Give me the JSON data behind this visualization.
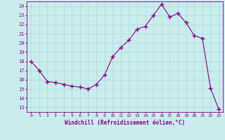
{
  "x": [
    0,
    1,
    2,
    3,
    4,
    5,
    6,
    7,
    8,
    9,
    10,
    11,
    12,
    13,
    14,
    15,
    16,
    17,
    18,
    19,
    20,
    21,
    22,
    23
  ],
  "y": [
    18,
    17,
    15.8,
    15.7,
    15.5,
    15.3,
    15.2,
    15.0,
    15.5,
    16.5,
    18.5,
    19.5,
    20.3,
    21.5,
    21.8,
    23.0,
    24.2,
    22.8,
    23.2,
    22.2,
    20.8,
    20.5,
    15.1,
    12.8
  ],
  "line_color": "#8B008B",
  "marker": "+",
  "marker_size": 4,
  "bg_color": "#C8EDEC",
  "grid_color": "#B0D8D8",
  "xlabel": "Windchill (Refroidissement éolien,°C)",
  "xlabel_color": "#8B008B",
  "ylabel_ticks": [
    13,
    14,
    15,
    16,
    17,
    18,
    19,
    20,
    21,
    22,
    23,
    24
  ],
  "xlim": [
    -0.5,
    23.5
  ],
  "ylim": [
    12.5,
    24.5
  ],
  "xtick_labels": [
    "0",
    "1",
    "2",
    "3",
    "4",
    "5",
    "6",
    "7",
    "8",
    "9",
    "10",
    "11",
    "12",
    "13",
    "14",
    "15",
    "16",
    "17",
    "18",
    "19",
    "20",
    "21",
    "22",
    "23"
  ]
}
